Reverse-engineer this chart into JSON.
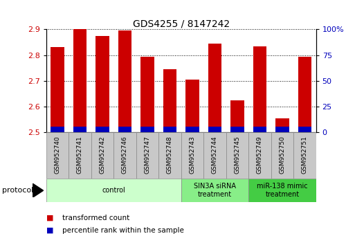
{
  "title": "GDS4255 / 8147242",
  "samples": [
    "GSM952740",
    "GSM952741",
    "GSM952742",
    "GSM952746",
    "GSM952747",
    "GSM952748",
    "GSM952743",
    "GSM952744",
    "GSM952745",
    "GSM952749",
    "GSM952750",
    "GSM952751"
  ],
  "red_values": [
    2.83,
    2.9,
    2.875,
    2.895,
    2.795,
    2.745,
    2.705,
    2.845,
    2.625,
    2.835,
    2.555,
    2.795
  ],
  "blue_values": [
    2.522,
    2.522,
    2.522,
    2.523,
    2.522,
    2.522,
    2.522,
    2.523,
    2.521,
    2.522,
    2.522,
    2.522
  ],
  "ylim": [
    2.5,
    2.9
  ],
  "yticks_left": [
    2.5,
    2.6,
    2.7,
    2.8,
    2.9
  ],
  "yticks_right_vals": [
    0,
    25,
    50,
    75,
    100
  ],
  "yticks_right_labels": [
    "0",
    "25",
    "50",
    "75",
    "100%"
  ],
  "bar_width": 0.6,
  "red_color": "#cc0000",
  "blue_color": "#0000bb",
  "groups": [
    {
      "label": "control",
      "start": 0,
      "end": 6,
      "color": "#ccffcc"
    },
    {
      "label": "SIN3A siRNA\ntreatment",
      "start": 6,
      "end": 9,
      "color": "#88ee88"
    },
    {
      "label": "miR-138 mimic\ntreatment",
      "start": 9,
      "end": 12,
      "color": "#44cc44"
    }
  ],
  "legend_items": [
    {
      "label": "transformed count",
      "color": "#cc0000"
    },
    {
      "label": "percentile rank within the sample",
      "color": "#0000bb"
    }
  ],
  "title_fontsize": 10,
  "tick_fontsize": 8,
  "sample_fontsize": 6.5,
  "group_fontsize": 7,
  "legend_fontsize": 7.5,
  "protocol_fontsize": 8,
  "background": "#ffffff",
  "gray_box_color": "#c8c8c8",
  "gray_box_edge": "#888888"
}
